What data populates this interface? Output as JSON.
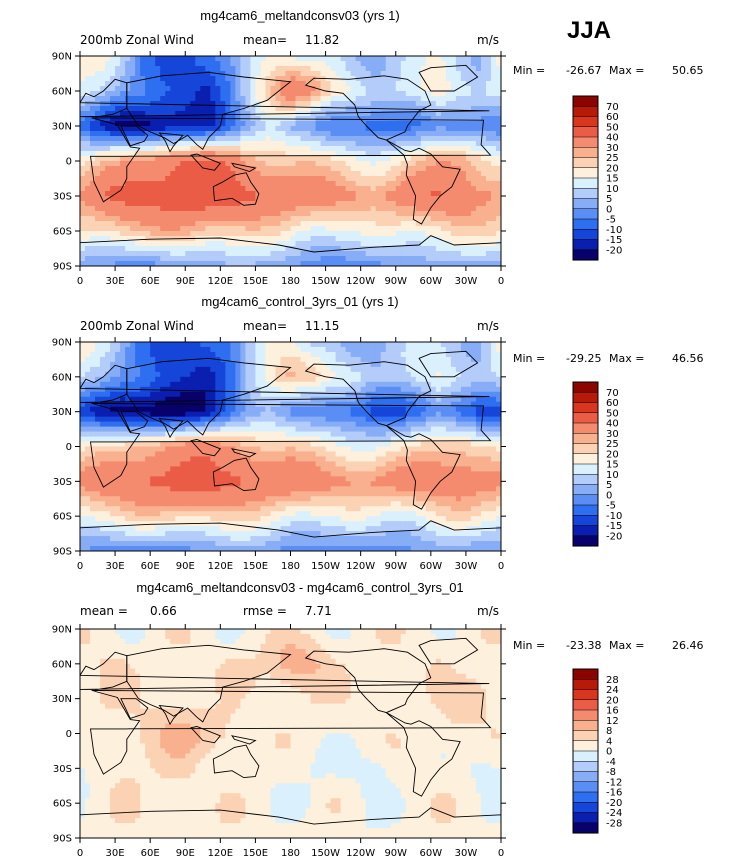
{
  "season": "JJA",
  "colors": {
    "wind_scale": [
      "#08006b",
      "#0a1fb0",
      "#1546d9",
      "#2e6ef0",
      "#5a8ef5",
      "#87adf7",
      "#b3ccfa",
      "#daf0fd",
      "#fdf0dc",
      "#fcd2b5",
      "#f9b08f",
      "#f48a6e",
      "#ea5c45",
      "#d93620",
      "#b81a0a",
      "#8a0500"
    ],
    "diff_scale": [
      "#08006b",
      "#0a1fb0",
      "#1546d9",
      "#2e6ef0",
      "#5a8ef5",
      "#87adf7",
      "#b3ccfa",
      "#daf0fd",
      "#fdf0dc",
      "#fcd2b5",
      "#f9b08f",
      "#f48a6e",
      "#ea5c45",
      "#d93620",
      "#b81a0a",
      "#8a0500"
    ]
  },
  "chart_data": [
    {
      "type": "heatmap",
      "title": "mg4cam6_meltandconsv03 (yrs 1)",
      "variable": "200mb Zonal Wind",
      "stat_label": "mean=",
      "stat_value": "11.82",
      "units": "m/s",
      "min_label": "Min =",
      "min_value": "-26.67",
      "max_label": "Max =",
      "max_value": "50.65",
      "colorbar_labels": [
        "70",
        "60",
        "50",
        "40",
        "30",
        "25",
        "20",
        "15",
        "10",
        "5",
        "0",
        "-5",
        "-10",
        "-15",
        "-20"
      ],
      "y_ticks": [
        "90N",
        "60N",
        "30N",
        "0",
        "30S",
        "60S",
        "90S"
      ],
      "x_ticks": [
        "0",
        "30E",
        "60E",
        "90E",
        "120E",
        "150E",
        "180",
        "150W",
        "120W",
        "90W",
        "60W",
        "30W",
        "0"
      ],
      "lat_range": [
        -90,
        90
      ],
      "lon_range": [
        0,
        360
      ],
      "map_field": [
        [
          18,
          15,
          8,
          -5,
          -8,
          -12,
          -10,
          -5,
          12,
          20,
          14,
          8,
          10,
          6,
          4,
          8,
          10,
          14,
          10,
          6,
          18
        ],
        [
          14,
          10,
          2,
          -4,
          -10,
          -12,
          -16,
          -6,
          10,
          24,
          40,
          34,
          20,
          14,
          8,
          10,
          14,
          20,
          12,
          8,
          14
        ],
        [
          -6,
          -14,
          -22,
          -24,
          -22,
          -18,
          -16,
          -8,
          0,
          8,
          4,
          2,
          -4,
          -8,
          -10,
          -8,
          -4,
          0,
          -4,
          -6,
          -6
        ],
        [
          18,
          22,
          28,
          34,
          38,
          40,
          42,
          38,
          30,
          26,
          24,
          22,
          20,
          18,
          16,
          18,
          22,
          28,
          30,
          24,
          18
        ],
        [
          30,
          38,
          44,
          46,
          48,
          50,
          48,
          46,
          44,
          40,
          38,
          36,
          34,
          32,
          30,
          34,
          38,
          40,
          40,
          34,
          30
        ],
        [
          20,
          22,
          24,
          24,
          26,
          28,
          26,
          24,
          22,
          20,
          18,
          16,
          16,
          14,
          14,
          16,
          18,
          20,
          22,
          20,
          20
        ],
        [
          2,
          0,
          -2,
          -3,
          -2,
          0,
          2,
          4,
          4,
          2,
          0,
          -2,
          -4,
          -4,
          -2,
          0,
          2,
          4,
          2,
          2,
          2
        ]
      ]
    },
    {
      "type": "heatmap",
      "title": "mg4cam6_control_3yrs_01 (yrs 1)",
      "variable": "200mb Zonal Wind",
      "stat_label": "mean=",
      "stat_value": "11.15",
      "units": "m/s",
      "min_label": "Min =",
      "min_value": "-29.25",
      "max_label": "Max =",
      "max_value": "46.56",
      "colorbar_labels": [
        "70",
        "60",
        "50",
        "40",
        "30",
        "25",
        "20",
        "15",
        "10",
        "5",
        "0",
        "-5",
        "-10",
        "-15",
        "-20"
      ],
      "y_ticks": [
        "90N",
        "60N",
        "30N",
        "0",
        "30S",
        "60S",
        "90S"
      ],
      "x_ticks": [
        "0",
        "30E",
        "60E",
        "90E",
        "120E",
        "150E",
        "180",
        "150W",
        "120W",
        "90W",
        "60W",
        "30W",
        "0"
      ],
      "lat_range": [
        -90,
        90
      ],
      "lon_range": [
        0,
        360
      ],
      "map_field": [
        [
          16,
          12,
          6,
          -6,
          -10,
          -14,
          -12,
          -6,
          10,
          18,
          12,
          6,
          8,
          4,
          2,
          6,
          8,
          12,
          8,
          4,
          16
        ],
        [
          12,
          6,
          -2,
          -6,
          -12,
          -14,
          -18,
          -10,
          6,
          18,
          28,
          24,
          16,
          12,
          6,
          8,
          12,
          16,
          10,
          6,
          12
        ],
        [
          -10,
          -18,
          -24,
          -26,
          -26,
          -22,
          -18,
          -10,
          -2,
          4,
          0,
          -2,
          -6,
          -10,
          -14,
          -12,
          -6,
          -2,
          -10,
          -14,
          -10
        ],
        [
          16,
          20,
          24,
          28,
          30,
          32,
          34,
          32,
          28,
          24,
          22,
          20,
          18,
          16,
          14,
          16,
          20,
          24,
          26,
          22,
          16
        ],
        [
          32,
          36,
          40,
          42,
          44,
          46,
          46,
          44,
          42,
          40,
          38,
          36,
          34,
          32,
          32,
          34,
          36,
          38,
          38,
          36,
          32
        ],
        [
          18,
          20,
          20,
          22,
          22,
          24,
          24,
          22,
          20,
          18,
          16,
          16,
          14,
          14,
          14,
          14,
          16,
          18,
          20,
          18,
          18
        ],
        [
          0,
          -2,
          -3,
          -4,
          -3,
          -2,
          0,
          2,
          2,
          0,
          -2,
          -3,
          -4,
          -4,
          -3,
          -2,
          0,
          2,
          0,
          0,
          0
        ]
      ]
    },
    {
      "type": "heatmap",
      "title": "mg4cam6_meltandconsv03 - mg4cam6_control_3yrs_01",
      "stat_label": "mean =",
      "stat_value": "0.66",
      "rmse_label": "rmse =",
      "rmse_value": "7.71",
      "units": "m/s",
      "min_label": "Min =",
      "min_value": "-23.38",
      "max_label": "Max =",
      "max_value": "26.46",
      "colorbar_labels": [
        "28",
        "24",
        "20",
        "16",
        "12",
        "8",
        "4",
        "0",
        "-4",
        "-8",
        "-12",
        "-16",
        "-20",
        "-24",
        "-28"
      ],
      "y_ticks": [
        "90N",
        "60N",
        "30N",
        "0",
        "30S",
        "60S",
        "90S"
      ],
      "x_ticks": [
        "0",
        "30E",
        "60E",
        "90E",
        "120E",
        "150E",
        "180",
        "150W",
        "120W",
        "90W",
        "60W",
        "30W",
        "0"
      ],
      "lat_range": [
        -90,
        90
      ],
      "lon_range": [
        0,
        360
      ],
      "map_field": [
        [
          2,
          3,
          2,
          1,
          2,
          2,
          2,
          1,
          2,
          2,
          2,
          2,
          2,
          2,
          2,
          2,
          2,
          2,
          2,
          2,
          2
        ],
        [
          2,
          4,
          4,
          2,
          2,
          2,
          2,
          4,
          4,
          6,
          12,
          10,
          4,
          2,
          2,
          2,
          2,
          4,
          2,
          2,
          2
        ],
        [
          4,
          4,
          2,
          2,
          4,
          4,
          2,
          2,
          2,
          4,
          4,
          4,
          2,
          2,
          4,
          4,
          2,
          2,
          6,
          8,
          4
        ],
        [
          2,
          2,
          4,
          6,
          8,
          8,
          8,
          6,
          2,
          2,
          2,
          2,
          2,
          2,
          2,
          2,
          2,
          4,
          4,
          2,
          2
        ],
        [
          -2,
          2,
          4,
          4,
          4,
          4,
          2,
          2,
          2,
          0,
          0,
          0,
          0,
          0,
          -2,
          0,
          2,
          2,
          2,
          -2,
          -2
        ],
        [
          2,
          2,
          4,
          2,
          4,
          4,
          2,
          2,
          2,
          2,
          2,
          0,
          2,
          0,
          0,
          2,
          2,
          2,
          2,
          2,
          2
        ],
        [
          2,
          2,
          1,
          1,
          1,
          2,
          2,
          2,
          2,
          2,
          2,
          1,
          0,
          0,
          1,
          2,
          2,
          2,
          2,
          2,
          2
        ]
      ]
    }
  ]
}
